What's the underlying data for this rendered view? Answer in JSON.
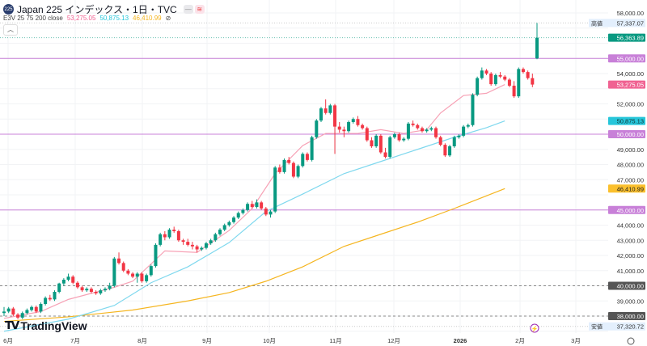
{
  "header": {
    "logo_text": "225",
    "title": "Japan 225 インデックス・1日・TVC"
  },
  "indicator": {
    "name": "E3V 25 75 200 close",
    "ma25": "53,275.05",
    "ma75": "50,875.13",
    "ma200": "46,410.99",
    "hide_icon": "eye-off-icon"
  },
  "colors": {
    "up": "#089981",
    "down": "#f23645",
    "ma25": "#f7a1b5",
    "ma75": "#7fd8ee",
    "ma200": "#f5b51f",
    "level": "#c880d8",
    "ma25_label": "#f06292",
    "ma75_label": "#26c6da",
    "ma200_label": "#fbc02d"
  },
  "brand": "TradingView",
  "chart_data": {
    "type": "candlestick",
    "ylim": [
      37000,
      58200
    ],
    "y_ticks": [
      58000,
      57000,
      56000,
      55000,
      54000,
      53000,
      52000,
      51000,
      50000,
      49000,
      48000,
      47000,
      46000,
      45000,
      44000,
      43000,
      42000,
      41000,
      40000,
      39000,
      38000,
      37000
    ],
    "x_ticks": [
      "6月",
      "7月",
      "8月",
      "9月",
      "10月",
      "11月",
      "12月",
      "2026",
      "2月",
      "3月"
    ],
    "candles": [
      [
        38200,
        38600,
        38000,
        38300
      ],
      [
        38300,
        38600,
        38200,
        38500
      ],
      [
        38500,
        38600,
        38000,
        38100
      ],
      [
        38100,
        38200,
        37800,
        37900
      ],
      [
        37900,
        38300,
        37800,
        38200
      ],
      [
        38200,
        38500,
        38100,
        38400
      ],
      [
        38400,
        38700,
        38300,
        38600
      ],
      [
        38600,
        38700,
        38200,
        38300
      ],
      [
        38300,
        38900,
        38200,
        38800
      ],
      [
        38800,
        39300,
        38700,
        39200
      ],
      [
        39200,
        39400,
        39000,
        39100
      ],
      [
        39100,
        39700,
        39000,
        39600
      ],
      [
        39600,
        40200,
        39500,
        40150
      ],
      [
        40150,
        40500,
        40000,
        40400
      ],
      [
        40400,
        40800,
        40300,
        40600
      ],
      [
        40600,
        40700,
        40100,
        40200
      ],
      [
        40200,
        40300,
        39800,
        39900
      ],
      [
        39900,
        40000,
        39600,
        39700
      ],
      [
        39700,
        39900,
        39600,
        39800
      ],
      [
        39800,
        39900,
        39500,
        39600
      ],
      [
        39600,
        39700,
        39400,
        39500
      ],
      [
        39500,
        39800,
        39400,
        39700
      ],
      [
        39700,
        39900,
        39600,
        39800
      ],
      [
        39800,
        40200,
        39700,
        40000
      ],
      [
        40000,
        41900,
        39900,
        41800
      ],
      [
        41800,
        42200,
        41400,
        41500
      ],
      [
        41500,
        41600,
        40900,
        41000
      ],
      [
        41000,
        41100,
        40700,
        40800
      ],
      [
        40800,
        40900,
        40500,
        40600
      ],
      [
        40600,
        40900,
        40200,
        40800
      ],
      [
        40800,
        40900,
        40200,
        40300
      ],
      [
        40300,
        40800,
        40200,
        40700
      ],
      [
        40700,
        41400,
        40600,
        41300
      ],
      [
        41300,
        42800,
        41200,
        42700
      ],
      [
        42700,
        43500,
        42600,
        43400
      ],
      [
        43400,
        43600,
        43000,
        43200
      ],
      [
        43200,
        43800,
        43100,
        43700
      ],
      [
        43700,
        43900,
        43500,
        43600
      ],
      [
        43600,
        43700,
        42900,
        43000
      ],
      [
        43000,
        43100,
        42700,
        42900
      ],
      [
        42900,
        43100,
        42600,
        42700
      ],
      [
        42700,
        42900,
        42400,
        42600
      ],
      [
        42600,
        42700,
        42200,
        42400
      ],
      [
        42400,
        42600,
        42300,
        42500
      ],
      [
        42500,
        42900,
        42400,
        42800
      ],
      [
        42800,
        43100,
        42700,
        43000
      ],
      [
        43000,
        43500,
        42900,
        43400
      ],
      [
        43400,
        43800,
        43300,
        43700
      ],
      [
        43700,
        44100,
        43600,
        44000
      ],
      [
        44000,
        44300,
        43900,
        44200
      ],
      [
        44200,
        44600,
        44100,
        44500
      ],
      [
        44500,
        44900,
        44400,
        44800
      ],
      [
        44800,
        45100,
        44700,
        45000
      ],
      [
        45000,
        45500,
        44900,
        45400
      ],
      [
        45400,
        45600,
        45100,
        45200
      ],
      [
        45200,
        45700,
        45100,
        45500
      ],
      [
        45500,
        45600,
        45000,
        45100
      ],
      [
        45100,
        45200,
        44600,
        44700
      ],
      [
        44700,
        45000,
        44500,
        44900
      ],
      [
        44900,
        47900,
        44800,
        47800
      ],
      [
        47800,
        48000,
        47400,
        47500
      ],
      [
        47500,
        48400,
        47400,
        48300
      ],
      [
        48300,
        48500,
        48000,
        48100
      ],
      [
        48100,
        48200,
        47100,
        47200
      ],
      [
        47200,
        48000,
        47100,
        47900
      ],
      [
        47900,
        48800,
        47800,
        48700
      ],
      [
        48700,
        48800,
        48200,
        48300
      ],
      [
        48300,
        49900,
        48200,
        49800
      ],
      [
        49800,
        51000,
        49700,
        50900
      ],
      [
        50900,
        51800,
        50800,
        51700
      ],
      [
        51700,
        52300,
        51300,
        51400
      ],
      [
        51400,
        52000,
        51300,
        51900
      ],
      [
        51900,
        52000,
        48700,
        50500
      ],
      [
        50500,
        50800,
        50100,
        50300
      ],
      [
        50300,
        50500,
        49800,
        50200
      ],
      [
        50200,
        50900,
        50100,
        50800
      ],
      [
        50800,
        51100,
        50700,
        51000
      ],
      [
        51000,
        51200,
        50500,
        50600
      ],
      [
        50600,
        50700,
        50300,
        50400
      ],
      [
        50400,
        50500,
        49500,
        49600
      ],
      [
        49600,
        49800,
        49100,
        49200
      ],
      [
        49200,
        50000,
        49100,
        49900
      ],
      [
        49900,
        50000,
        48700,
        48800
      ],
      [
        48800,
        49100,
        48400,
        48500
      ],
      [
        48500,
        49900,
        48400,
        49800
      ],
      [
        49800,
        50100,
        49700,
        50000
      ],
      [
        50000,
        50100,
        49500,
        49600
      ],
      [
        49600,
        49800,
        49500,
        49700
      ],
      [
        49700,
        50800,
        49600,
        50700
      ],
      [
        50700,
        50900,
        50500,
        50600
      ],
      [
        50600,
        50700,
        50300,
        50400
      ],
      [
        50400,
        50500,
        50100,
        50200
      ],
      [
        50200,
        50400,
        50100,
        50300
      ],
      [
        50300,
        50500,
        50200,
        50400
      ],
      [
        50400,
        50500,
        49700,
        49800
      ],
      [
        49800,
        49900,
        49200,
        49300
      ],
      [
        49300,
        49400,
        48500,
        48600
      ],
      [
        48600,
        49300,
        48500,
        49200
      ],
      [
        49200,
        49900,
        49100,
        49800
      ],
      [
        49800,
        50000,
        49700,
        49900
      ],
      [
        49900,
        50600,
        49800,
        50500
      ],
      [
        50500,
        50700,
        50400,
        50600
      ],
      [
        50600,
        52700,
        50500,
        52600
      ],
      [
        52600,
        53800,
        52500,
        53700
      ],
      [
        53700,
        54400,
        53600,
        54200
      ],
      [
        54200,
        54300,
        53900,
        54000
      ],
      [
        54000,
        54100,
        53200,
        53300
      ],
      [
        53300,
        54000,
        53200,
        53900
      ],
      [
        53900,
        54100,
        53700,
        53800
      ],
      [
        53800,
        53900,
        53500,
        53600
      ],
      [
        53600,
        53700,
        53100,
        53200
      ],
      [
        53200,
        53500,
        52400,
        52500
      ],
      [
        52500,
        54400,
        52400,
        54300
      ],
      [
        54300,
        54400,
        54000,
        54100
      ],
      [
        54100,
        54200,
        53600,
        53700
      ],
      [
        53700,
        54000,
        53100,
        53275
      ],
      [
        55000,
        57337,
        54950,
        56363
      ]
    ],
    "ma25": [
      [
        0,
        37850
      ],
      [
        8,
        38300
      ],
      [
        14,
        39100
      ],
      [
        24,
        39900
      ],
      [
        28,
        40300
      ],
      [
        35,
        42300
      ],
      [
        42,
        42200
      ],
      [
        49,
        43650
      ],
      [
        54,
        45100
      ],
      [
        59,
        47400
      ],
      [
        65,
        49250
      ],
      [
        70,
        50050
      ],
      [
        77,
        50050
      ],
      [
        82,
        50300
      ],
      [
        87,
        50050
      ],
      [
        92,
        50300
      ],
      [
        95,
        51400
      ],
      [
        100,
        52550
      ],
      [
        105,
        52700
      ],
      [
        109,
        53275
      ]
    ],
    "ma75": [
      [
        0,
        37000
      ],
      [
        14,
        37800
      ],
      [
        24,
        38700
      ],
      [
        32,
        40200
      ],
      [
        40,
        41250
      ],
      [
        49,
        42850
      ],
      [
        57,
        44900
      ],
      [
        65,
        46050
      ],
      [
        74,
        47400
      ],
      [
        82,
        48200
      ],
      [
        90,
        49000
      ],
      [
        98,
        49800
      ],
      [
        105,
        50430
      ],
      [
        109,
        50875
      ]
    ],
    "ma200": [
      [
        0,
        37650
      ],
      [
        14,
        37950
      ],
      [
        28,
        38400
      ],
      [
        40,
        39000
      ],
      [
        49,
        39550
      ],
      [
        57,
        40300
      ],
      [
        65,
        41250
      ],
      [
        74,
        42600
      ],
      [
        82,
        43400
      ],
      [
        90,
        44200
      ],
      [
        98,
        45100
      ],
      [
        109,
        46410
      ]
    ],
    "levels": [
      {
        "price": 55000,
        "label": "55,000.00",
        "kind": "alert"
      },
      {
        "price": 50000,
        "label": "50,000.00",
        "kind": "alert"
      },
      {
        "price": 45000,
        "label": "45,000.00",
        "kind": "alert"
      },
      {
        "price": 40000,
        "label": "40,000.00",
        "kind": "dashed"
      },
      {
        "price": 38000,
        "label": "38,000.00",
        "kind": "dashed"
      }
    ],
    "high": {
      "label": "高値",
      "price": 57337.07,
      "text": "57,337.07"
    },
    "low": {
      "label": "安値",
      "price": 37320.72,
      "text": "37,320.72"
    },
    "last": {
      "price": 56363.89,
      "text": "56,363.89"
    },
    "ma_labels": [
      {
        "price": 53275.05,
        "text": "53,275.05",
        "key": "ma25_label"
      },
      {
        "price": 50875.13,
        "text": "50,875.13",
        "key": "ma75_label"
      },
      {
        "price": 46410.99,
        "text": "46,410.99",
        "key": "ma200_label"
      }
    ]
  }
}
